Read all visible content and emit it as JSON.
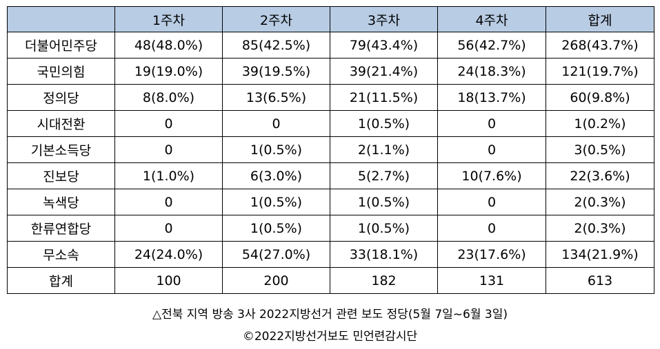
{
  "table": {
    "headers": [
      "",
      "1주차",
      "2주차",
      "3주차",
      "4주차",
      "합계"
    ],
    "rows": [
      [
        "더불어민주당",
        "48(48.0%)",
        "85(42.5%)",
        "79(43.4%)",
        "56(42.7%)",
        "268(43.7%)"
      ],
      [
        "국민의힘",
        "19(19.0%)",
        "39(19.5%)",
        "39(21.4%)",
        "24(18.3%)",
        "121(19.7%)"
      ],
      [
        "정의당",
        "8(8.0%)",
        "13(6.5%)",
        "21(11.5%)",
        "18(13.7%)",
        "60(9.8%)"
      ],
      [
        "시대전환",
        "0",
        "0",
        "1(0.5%)",
        "0",
        "1(0.2%)"
      ],
      [
        "기본소득당",
        "0",
        "1(0.5%)",
        "2(1.1%)",
        "0",
        "3(0.5%)"
      ],
      [
        "진보당",
        "1(1.0%)",
        "6(3.0%)",
        "5(2.7%)",
        "10(7.6%)",
        "22(3.6%)"
      ],
      [
        "녹색당",
        "0",
        "1(0.5%)",
        "1(0.5%)",
        "0",
        "2(0.3%)"
      ],
      [
        "한류연합당",
        "0",
        "1(0.5%)",
        "1(0.5%)",
        "0",
        "2(0.3%)"
      ],
      [
        "무소속",
        "24(24.0%)",
        "54(27.0%)",
        "33(18.1%)",
        "23(17.6%)",
        "134(21.9%)"
      ],
      [
        "합계",
        "100",
        "200",
        "182",
        "131",
        "613"
      ]
    ]
  },
  "caption": {
    "line1": "△전북 지역 방송 3사 2022지방선거 관련 보도 정당(5월 7일~6월 3일)",
    "line2": "©2022지방선거보도 민언련감시단"
  },
  "colors": {
    "header_bg": "#b8cce4",
    "border": "#000000"
  }
}
